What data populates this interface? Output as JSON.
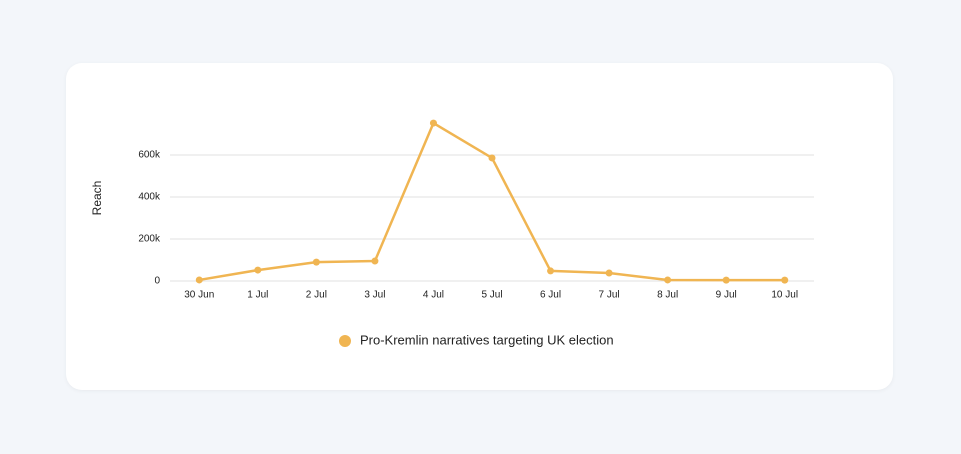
{
  "chart_data": {
    "type": "line",
    "y_label": "Reach",
    "categories": [
      "30 Jun",
      "1 Jul",
      "2 Jul",
      "3 Jul",
      "4 Jul",
      "5 Jul",
      "6 Jul",
      "7 Jul",
      "8 Jul",
      "9 Jul",
      "10 Jul"
    ],
    "series": [
      {
        "name": "Pro-Kremlin narratives targeting UK election",
        "color": "#f0b552",
        "values": [
          5000,
          52000,
          90000,
          95000,
          752000,
          586000,
          48000,
          38000,
          5000,
          4000,
          4000
        ]
      }
    ],
    "ylim": [
      0,
      800000
    ],
    "yticks": [
      0,
      {
        "value": 200000,
        "label": "200k"
      },
      {
        "value": 400000,
        "label": "400k"
      },
      {
        "value": 600000,
        "label": "600k"
      }
    ],
    "grid": true,
    "legend": "bottom"
  }
}
